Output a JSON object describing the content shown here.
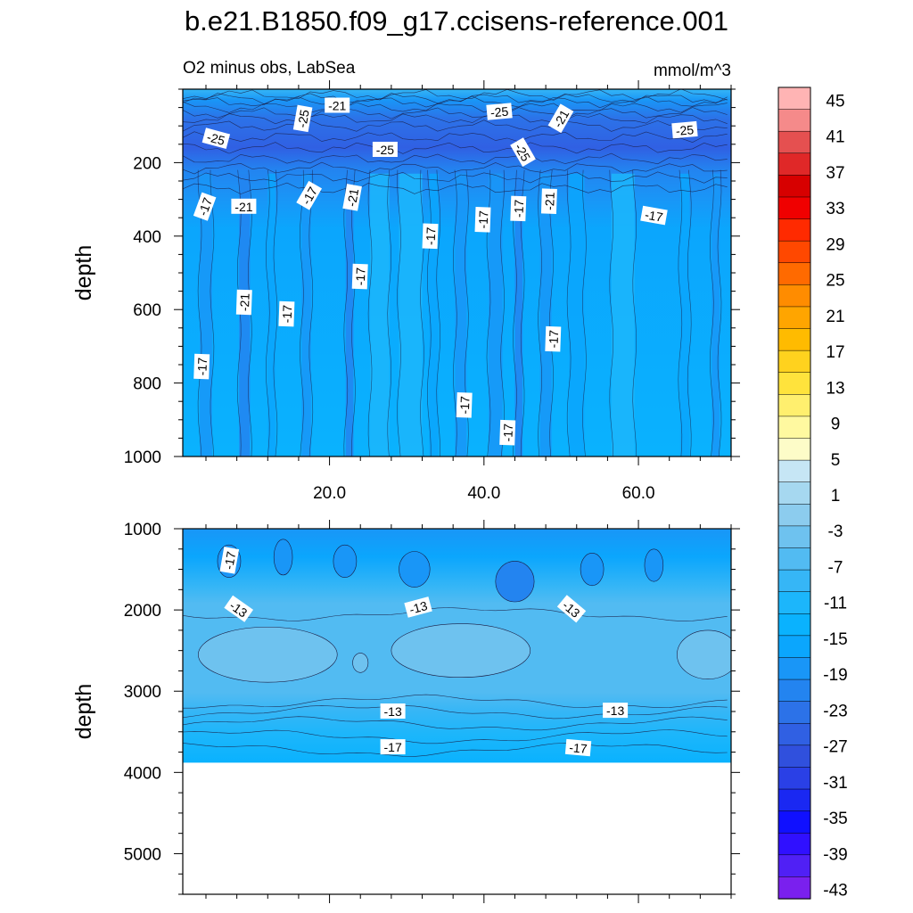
{
  "chart_data": {
    "type": "heatmap",
    "title": "b.e21.B1850.f09_g17.ccisens-reference.001",
    "subtitle_left": "O2 minus obs, LabSea",
    "subtitle_right": "mmol/m^3",
    "colorbar": {
      "levels": [
        45,
        41,
        37,
        33,
        29,
        25,
        21,
        17,
        13,
        9,
        5,
        1,
        -3,
        -7,
        -11,
        -15,
        -19,
        -23,
        -27,
        -31,
        -35,
        -39,
        -43
      ],
      "colors": [
        "#ffb4b4",
        "#f58a8a",
        "#e55050",
        "#e02828",
        "#d70000",
        "#f00000",
        "#ff2a00",
        "#ff4800",
        "#ff6a00",
        "#ff8c00",
        "#ffa500",
        "#ffbb00",
        "#ffd21e",
        "#ffe33c",
        "#ffef6e",
        "#fff9a0",
        "#fdfcc8",
        "#c6e6f5",
        "#a6d8f0",
        "#8cccee",
        "#6ec2ef",
        "#52bbf2",
        "#36b6f6",
        "#1cb6fb",
        "#0ab2fe",
        "#0ba6fd",
        "#1996f7",
        "#2384f0",
        "#2c72e8",
        "#3060e3",
        "#3050dd",
        "#2a40e6",
        "#1a28f2",
        "#1010ff",
        "#3010ff",
        "#5020f5",
        "#7a20ee"
      ]
    },
    "panels": [
      {
        "name": "upper",
        "ylabel": "depth",
        "y_ticks": [
          200,
          400,
          600,
          800,
          1000
        ],
        "ylim": [
          0,
          1000
        ],
        "x_ticks": [
          "20.0",
          "40.0",
          "60.0"
        ],
        "x_tick_values": [
          20,
          40,
          60
        ],
        "xlim": [
          1,
          72
        ],
        "contour_labels": [
          {
            "text": "-21",
            "x": 21,
            "y": 45
          },
          {
            "text": "-25",
            "x": 16.6,
            "y": 80,
            "rot": -80
          },
          {
            "text": "-25",
            "x": 42,
            "y": 62,
            "rot": -5
          },
          {
            "text": "-21",
            "x": 50,
            "y": 80,
            "rot": -60
          },
          {
            "text": "-25",
            "x": 5.3,
            "y": 135,
            "rot": 15
          },
          {
            "text": "-25",
            "x": 66,
            "y": 112,
            "rot": -5
          },
          {
            "text": "-25",
            "x": 27.2,
            "y": 165
          },
          {
            "text": "-25",
            "x": 45,
            "y": 172,
            "rot": 60
          },
          {
            "text": "-17",
            "x": 3.9,
            "y": 320,
            "rot": -70
          },
          {
            "text": "-21",
            "x": 8.9,
            "y": 320
          },
          {
            "text": "-17",
            "x": 17.4,
            "y": 290,
            "rot": -60
          },
          {
            "text": "-21",
            "x": 23,
            "y": 295,
            "rot": -80
          },
          {
            "text": "-17",
            "x": 39.9,
            "y": 355,
            "rot": -88
          },
          {
            "text": "-17",
            "x": 44.5,
            "y": 325,
            "rot": -88
          },
          {
            "text": "-21",
            "x": 48.5,
            "y": 305,
            "rot": -88
          },
          {
            "text": "-17",
            "x": 62,
            "y": 345,
            "rot": 10
          },
          {
            "text": "-17",
            "x": 33.1,
            "y": 400,
            "rot": -88
          },
          {
            "text": "-17",
            "x": 24,
            "y": 510,
            "rot": -88
          },
          {
            "text": "-21",
            "x": 9,
            "y": 580,
            "rot": -88
          },
          {
            "text": "-17",
            "x": 14.5,
            "y": 612,
            "rot": -88
          },
          {
            "text": "-17",
            "x": 49,
            "y": 680,
            "rot": -88
          },
          {
            "text": "-17",
            "x": 3.5,
            "y": 755,
            "rot": -88
          },
          {
            "text": "-17",
            "x": 37.5,
            "y": 860,
            "rot": -88
          },
          {
            "text": "-17",
            "x": 43.1,
            "y": 935,
            "rot": -88
          }
        ]
      },
      {
        "name": "lower",
        "ylabel": "depth",
        "y_ticks": [
          1000,
          2000,
          3000,
          4000,
          5000
        ],
        "ylim": [
          1000,
          5500
        ],
        "xlim": [
          1,
          72
        ],
        "bottom_depth": 3880,
        "contour_labels": [
          {
            "text": "-17",
            "x": 7.1,
            "y": 1390,
            "rot": -80
          },
          {
            "text": "-13",
            "x": 8.2,
            "y": 1990,
            "rot": 35
          },
          {
            "text": "-13",
            "x": 31.5,
            "y": 1970,
            "rot": -15
          },
          {
            "text": "-13",
            "x": 51.3,
            "y": 1990,
            "rot": 40
          },
          {
            "text": "-13",
            "x": 28.2,
            "y": 3250
          },
          {
            "text": "-13",
            "x": 57,
            "y": 3240
          },
          {
            "text": "-17",
            "x": 28.2,
            "y": 3690
          },
          {
            "text": "-17",
            "x": 52.2,
            "y": 3700,
            "rot": 5
          }
        ]
      }
    ]
  }
}
